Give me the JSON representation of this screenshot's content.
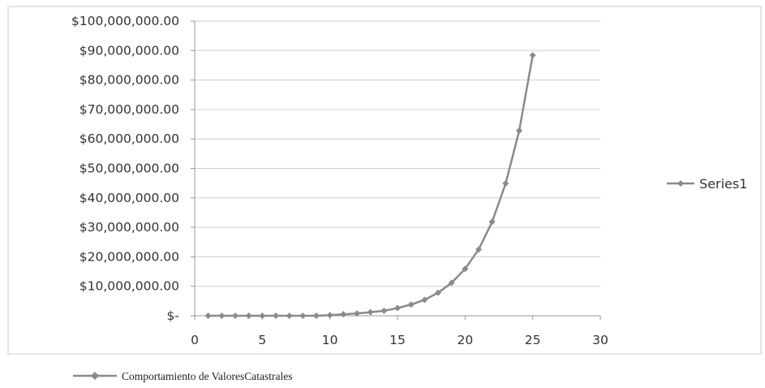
{
  "chart_data": {
    "type": "line",
    "x": [
      1,
      2,
      3,
      4,
      5,
      6,
      7,
      8,
      9,
      10,
      11,
      12,
      13,
      14,
      15,
      16,
      17,
      18,
      19,
      20,
      21,
      22,
      23,
      24,
      25
    ],
    "series": [
      {
        "name": "Series1",
        "values": [
          0,
          0,
          0,
          0,
          0,
          0,
          0,
          0,
          0,
          200000,
          500000,
          800000,
          1200000,
          1700000,
          2600000,
          3800000,
          5400000,
          7800000,
          11200000,
          15900000,
          22500000,
          31900000,
          44900000,
          62800000,
          88400000
        ]
      }
    ],
    "xlim": [
      0,
      30
    ],
    "x_ticks": [
      0,
      5,
      10,
      15,
      20,
      25,
      30
    ],
    "ylim": [
      0,
      100000000
    ],
    "y_ticks": [
      0,
      10000000,
      20000000,
      30000000,
      40000000,
      50000000,
      60000000,
      70000000,
      80000000,
      90000000,
      100000000
    ],
    "y_tick_labels": [
      "$-",
      "$10,000,000.00",
      "$20,000,000.00",
      "$30,000,000.00",
      "$40,000,000.00",
      "$50,000,000.00",
      "$60,000,000.00",
      "$70,000,000.00",
      "$80,000,000.00",
      "$90,000,000.00",
      "$100,000,000.00"
    ],
    "grid": true,
    "legend_position": "right",
    "series_color": "#8a8a8a"
  },
  "caption": {
    "label": "Comportamiento de ValoresCatastrales"
  }
}
